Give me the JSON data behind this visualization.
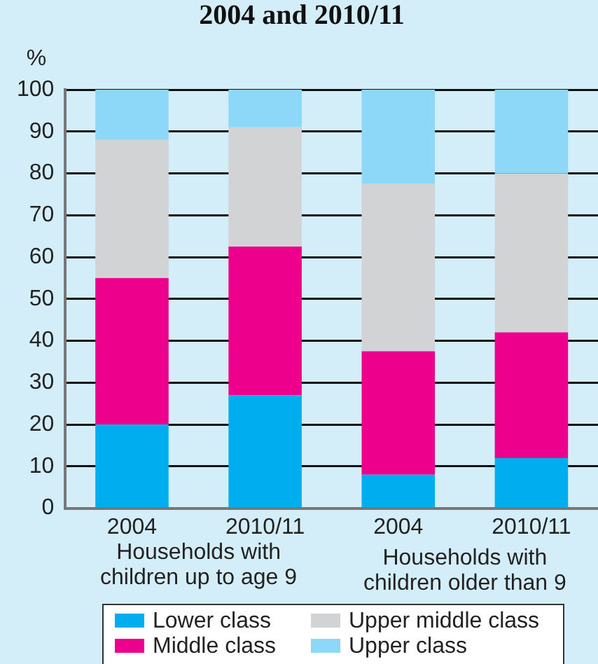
{
  "chart_data": {
    "type": "bar",
    "title": "2004 and 2010/11",
    "ylabel": "%",
    "categories": [
      "2004",
      "2010/11",
      "2004",
      "2010/11"
    ],
    "series": [
      {
        "name": "Lower class",
        "color": "#00aeef",
        "values": [
          20,
          27,
          8,
          12
        ]
      },
      {
        "name": "Middle class",
        "color": "#ec008c",
        "values": [
          35,
          35.5,
          29.5,
          30
        ]
      },
      {
        "name": "Upper middle class",
        "color": "#d1d3d4",
        "values": [
          33,
          28.5,
          40,
          38
        ]
      },
      {
        "name": "Upper class",
        "color": "#8dd8f8",
        "values": [
          12,
          9,
          22.5,
          20
        ]
      }
    ],
    "stacked": true,
    "ylim": [
      0,
      100
    ],
    "yticks": [
      0,
      10,
      20,
      30,
      40,
      50,
      60,
      70,
      80,
      90,
      100
    ],
    "grid": "y",
    "legend": "bottom",
    "annotations": [
      "Households with\nchildren up to age 9",
      "Households with\nchildren older than 9"
    ]
  }
}
